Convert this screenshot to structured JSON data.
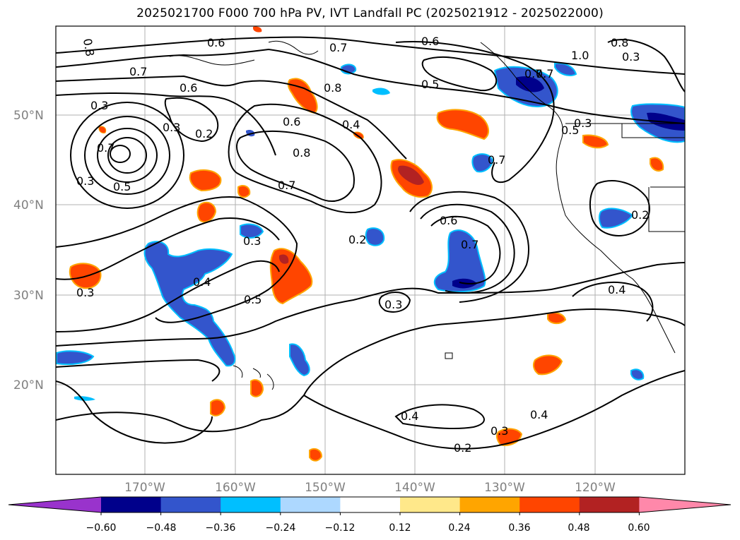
{
  "title": "2025021700 F000 700 hPa PV, IVT Landfall PC (2025021912 - 2025022000)",
  "lat_labels": [
    "50°N",
    "40°N",
    "30°N",
    "20°N"
  ],
  "lon_labels": [
    "170°W",
    "160°W",
    "150°W",
    "140°W",
    "130°W",
    "120°W"
  ],
  "contour_labels": [
    "0.8",
    "0.6",
    "0.7",
    "0.6",
    "0.3",
    "0.7",
    "0.8",
    "0.3",
    "0.2",
    "0.6",
    "0.8",
    "0.4",
    "0.7",
    "0.5",
    "0.6",
    "1.0",
    "0.8",
    "0.3",
    "0.7",
    "0.3",
    "0.5",
    "0.7",
    "0.2",
    "0.6",
    "0.7",
    "0.3",
    "0.4",
    "0.5",
    "0.3",
    "0.7",
    "0.2",
    "0.3",
    "0.4",
    "0.4",
    "0.3",
    "0.2",
    "0.4",
    "0.5",
    "0.7",
    "0.3"
  ],
  "colorbar": {
    "ticks": [
      "−0.60",
      "−0.48",
      "−0.36",
      "−0.24",
      "−0.12",
      "0.12",
      "0.24",
      "0.36",
      "0.48",
      "0.60"
    ],
    "colors": [
      "#9933cc",
      "#00008b",
      "#3355cc",
      "#00bfff",
      "#add8ff",
      "#ffffff",
      "#ffe88a",
      "#ffa500",
      "#ff4500",
      "#b22222",
      "#ff88aa"
    ]
  }
}
